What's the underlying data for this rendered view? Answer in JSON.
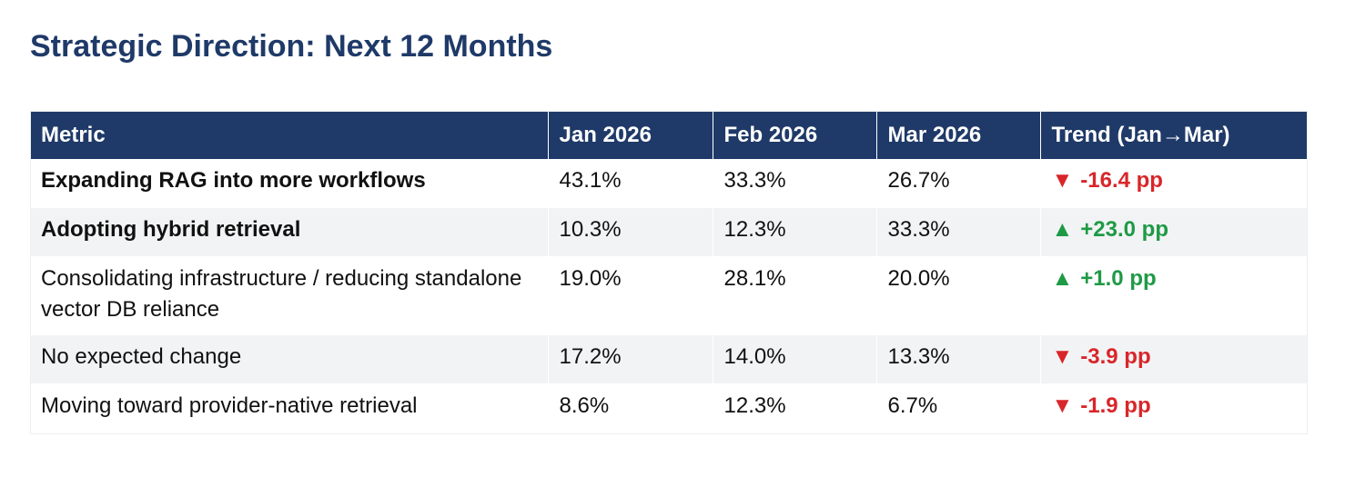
{
  "title": "Strategic Direction: Next 12 Months",
  "colors": {
    "title": "#1f3a68",
    "header_bg": "#1f3a68",
    "up": "#1e9a45",
    "down": "#d8262a",
    "row_shade": "#f2f3f5"
  },
  "table": {
    "headers": [
      "Metric",
      "Jan 2026",
      "Feb 2026",
      "Mar 2026",
      "Trend (Jan→Mar)"
    ],
    "rows": [
      {
        "metric": "Expanding RAG into more workflows",
        "bold": true,
        "jan": "43.1%",
        "feb": "33.3%",
        "mar": "26.7%",
        "trend_direction": "down",
        "trend_arrow": "▼",
        "trend_value": "-16.4 pp"
      },
      {
        "metric": "Adopting hybrid retrieval",
        "bold": true,
        "jan": "10.3%",
        "feb": "12.3%",
        "mar": "33.3%",
        "trend_direction": "up",
        "trend_arrow": "▲",
        "trend_value": "+23.0 pp"
      },
      {
        "metric": "Consolidating infrastructure / reducing standalone vector DB reliance",
        "bold": false,
        "jan": "19.0%",
        "feb": "28.1%",
        "mar": "20.0%",
        "trend_direction": "up",
        "trend_arrow": "▲",
        "trend_value": "+1.0 pp"
      },
      {
        "metric": "No expected change",
        "bold": false,
        "jan": "17.2%",
        "feb": "14.0%",
        "mar": "13.3%",
        "trend_direction": "down",
        "trend_arrow": "▼",
        "trend_value": "-3.9 pp"
      },
      {
        "metric": "Moving toward provider-native retrieval",
        "bold": false,
        "jan": "8.6%",
        "feb": "12.3%",
        "mar": "6.7%",
        "trend_direction": "down",
        "trend_arrow": "▼",
        "trend_value": "-1.9 pp"
      }
    ]
  }
}
